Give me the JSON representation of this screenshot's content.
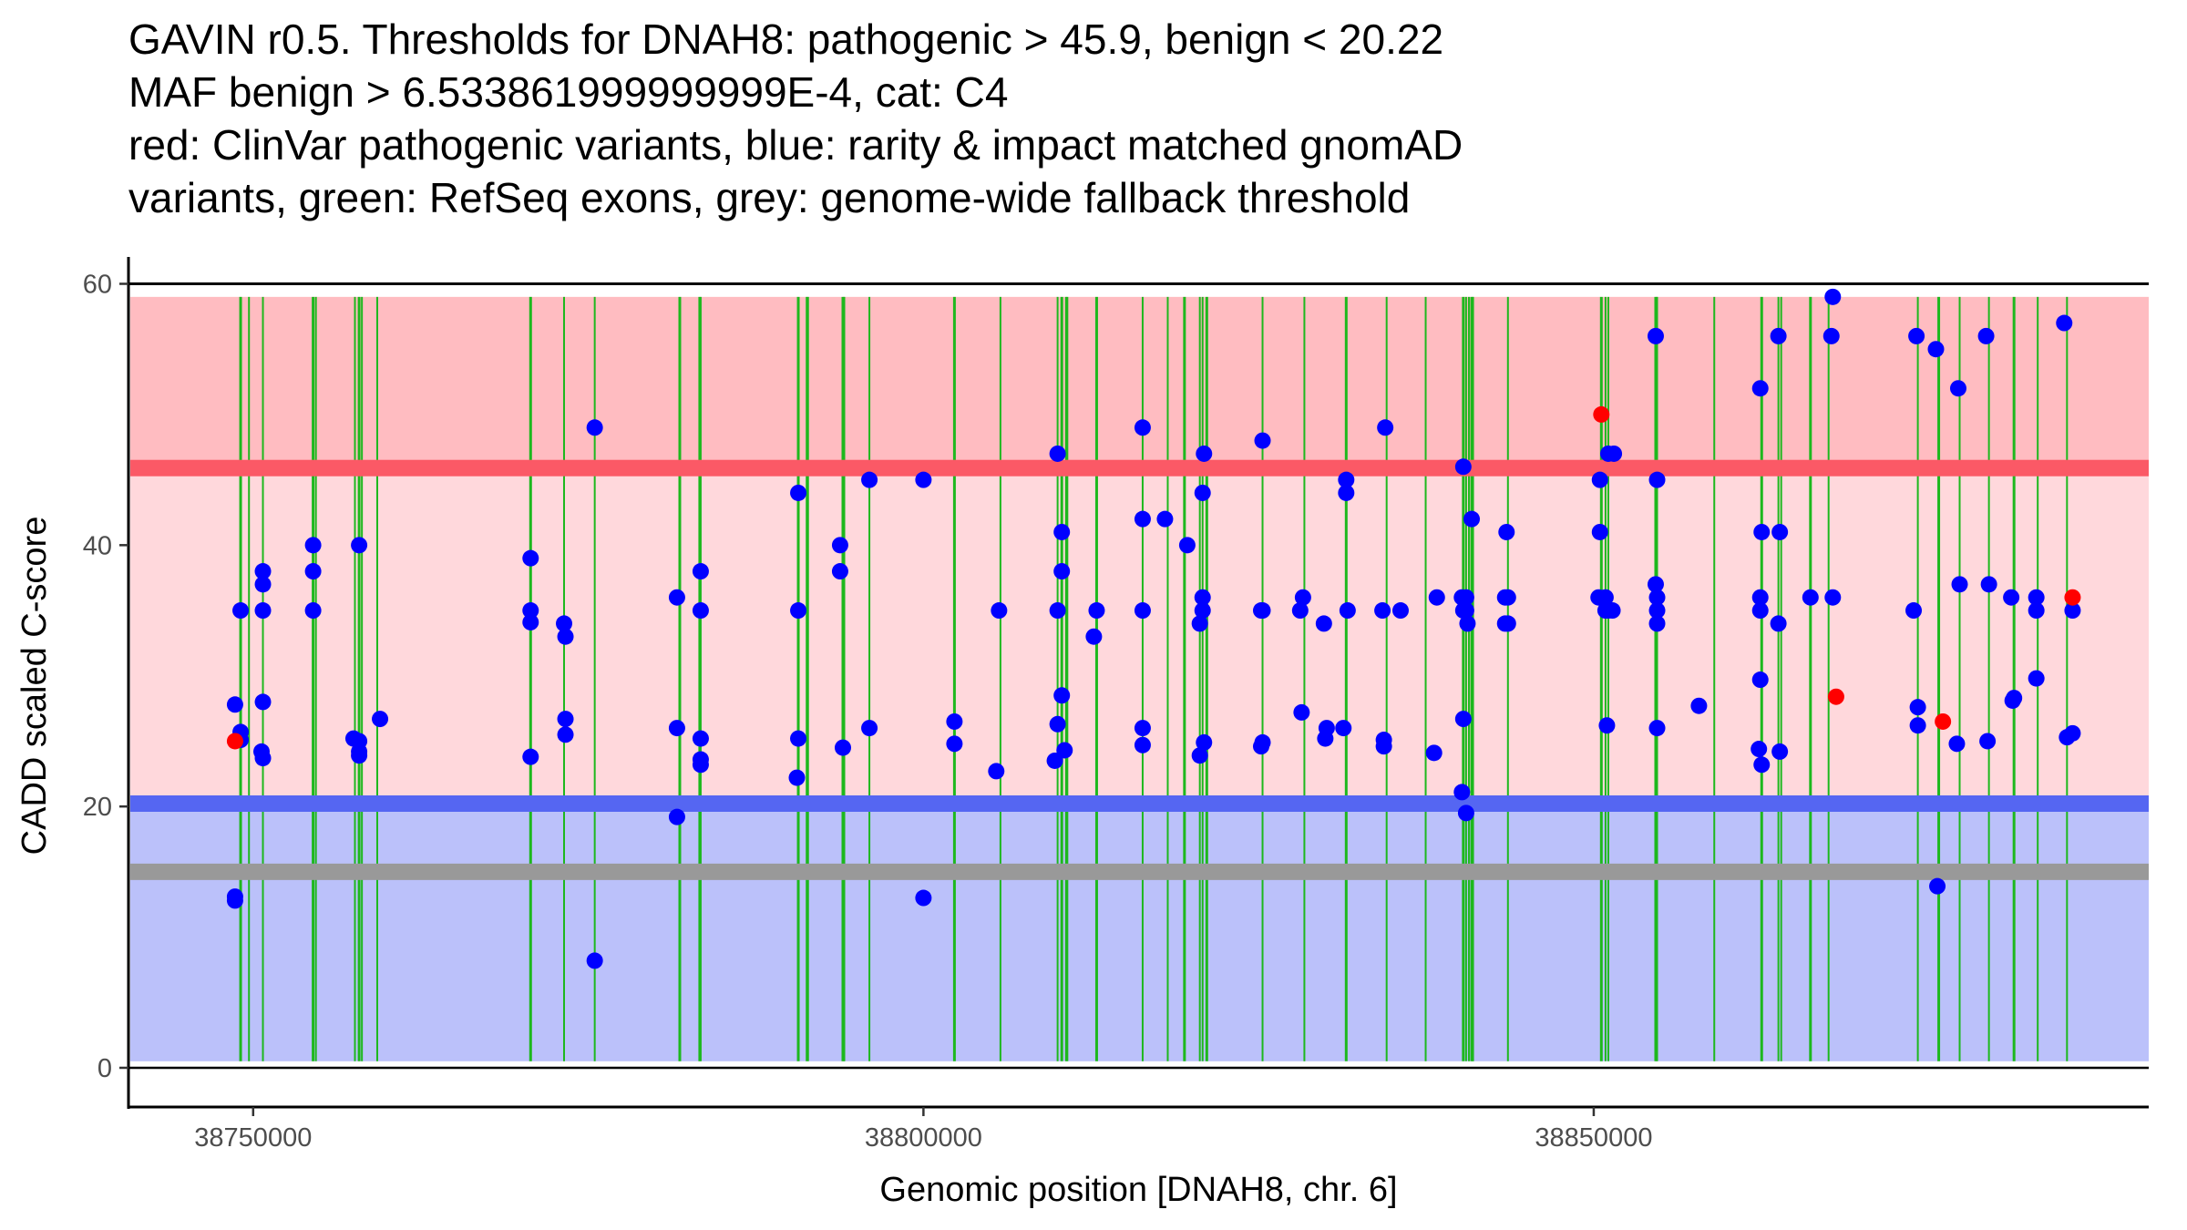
{
  "chart_data": {
    "type": "scatter",
    "title_lines": [
      "GAVIN r0.5. Thresholds for DNAH8: pathogenic > 45.9, benign < 20.22",
      "MAF benign > 6.533861999999999E-4, cat: C4",
      "red: ClinVar pathogenic variants, blue: rarity & impact matched gnomAD",
      "variants, green: RefSeq exons, grey: genome-wide fallback threshold"
    ],
    "xlabel": "Genomic position [DNAH8, chr. 6]",
    "ylabel": "CADD scaled C-score",
    "xlim": [
      38740700,
      38891400
    ],
    "ylim": [
      -3,
      61.5
    ],
    "x_ticks": [
      38750000,
      38800000,
      38850000
    ],
    "x_tick_labels": [
      "38750000",
      "38800000",
      "38850000"
    ],
    "y_ticks": [
      0,
      20,
      40,
      60
    ],
    "y_tick_labels": [
      "0",
      "20",
      "40",
      "60"
    ],
    "grid": false,
    "thresholds": {
      "pathogenic": 45.9,
      "benign": 20.22,
      "fallback": 15,
      "band_top": 59,
      "band_bottom": 0.5
    },
    "colors": {
      "pathogenic_band": "#ffbcc1",
      "middle_band": "#ffd8dc",
      "benign_band": "#bbc1fa",
      "pathogenic_line": "#fb5966",
      "benign_line": "#5566f2",
      "fallback_line": "#999999",
      "exon": "#1db81d",
      "clinvar": "#ff0000",
      "gnomad": "#0000ff"
    },
    "exons": [
      38749064,
      38749688,
      38750728,
      38754472,
      38754680,
      38757592,
      38757904,
      38758112,
      38759256,
      38770696,
      38773192,
      38775480,
      38781824,
      38783280,
      38783384,
      38790664,
      38791288,
      38791392,
      38793992,
      38794096,
      38795968,
      38802312,
      38805744,
      38810008,
      38810320,
      38810632,
      38810736,
      38812920,
      38816352,
      38818224,
      38819472,
      38820616,
      38820824,
      38821136,
      38825296,
      38828416,
      38831536,
      38834552,
      38837464,
      38840272,
      38840480,
      38840688,
      38840896,
      38841000,
      38843600,
      38850568,
      38850880,
      38851088,
      38854624,
      38854728,
      38858992,
      38862528,
      38863776,
      38863984,
      38866168,
      38867520,
      38874176,
      38875736,
      38877296,
      38879480,
      38881352,
      38883120,
      38885304
    ],
    "series": [
      {
        "name": "ClinVar pathogenic variants",
        "color": "red",
        "points": [
          [
            38748648,
            25.0
          ],
          [
            38850568,
            50.0
          ],
          [
            38868080,
            28.4
          ],
          [
            38876048,
            26.5
          ],
          [
            38885720,
            36.0
          ]
        ]
      },
      {
        "name": "rarity & impact matched gnomAD variants",
        "color": "blue",
        "points": [
          [
            38748648,
            27.8
          ],
          [
            38748648,
            13.1
          ],
          [
            38748648,
            12.8
          ],
          [
            38749064,
            35.0
          ],
          [
            38749064,
            25.7
          ],
          [
            38749064,
            25.1
          ],
          [
            38750728,
            38.0
          ],
          [
            38750728,
            37.0
          ],
          [
            38750728,
            35.0
          ],
          [
            38750728,
            28.0
          ],
          [
            38750624,
            24.2
          ],
          [
            38750728,
            23.7
          ],
          [
            38754472,
            40.0
          ],
          [
            38754472,
            38.0
          ],
          [
            38754472,
            35.0
          ],
          [
            38757488,
            25.2
          ],
          [
            38757904,
            40.0
          ],
          [
            38757904,
            25.0
          ],
          [
            38757904,
            24.2
          ],
          [
            38757904,
            23.9
          ],
          [
            38759464,
            26.7
          ],
          [
            38770696,
            39.0
          ],
          [
            38770696,
            35.0
          ],
          [
            38770696,
            34.1
          ],
          [
            38770696,
            23.8
          ],
          [
            38773192,
            34.0
          ],
          [
            38773296,
            33.0
          ],
          [
            38773296,
            26.7
          ],
          [
            38773296,
            25.5
          ],
          [
            38775480,
            49.0
          ],
          [
            38775480,
            8.2
          ],
          [
            38781616,
            36.0
          ],
          [
            38781616,
            26.0
          ],
          [
            38781616,
            19.2
          ],
          [
            38783384,
            38.0
          ],
          [
            38783384,
            35.0
          ],
          [
            38783384,
            25.2
          ],
          [
            38783384,
            23.6
          ],
          [
            38783384,
            23.2
          ],
          [
            38790664,
            44.0
          ],
          [
            38790664,
            35.0
          ],
          [
            38790664,
            25.2
          ],
          [
            38790560,
            22.2
          ],
          [
            38793784,
            40.0
          ],
          [
            38793784,
            38.0
          ],
          [
            38793992,
            24.5
          ],
          [
            38795968,
            45.0
          ],
          [
            38795968,
            26.0
          ],
          [
            38800000,
            45.0
          ],
          [
            38800000,
            13.0
          ],
          [
            38802312,
            26.5
          ],
          [
            38802312,
            24.8
          ],
          [
            38805640,
            35.0
          ],
          [
            38805432,
            22.7
          ],
          [
            38810008,
            47.0
          ],
          [
            38810008,
            35.0
          ],
          [
            38810320,
            41.0
          ],
          [
            38810320,
            38.0
          ],
          [
            38810320,
            28.5
          ],
          [
            38810008,
            26.3
          ],
          [
            38810528,
            24.3
          ],
          [
            38809800,
            23.5
          ],
          [
            38812920,
            35.0
          ],
          [
            38812712,
            33.0
          ],
          [
            38816352,
            49.0
          ],
          [
            38816352,
            42.0
          ],
          [
            38816352,
            35.0
          ],
          [
            38816352,
            26.0
          ],
          [
            38816352,
            24.7
          ],
          [
            38818016,
            42.0
          ],
          [
            38819680,
            40.0
          ],
          [
            38820928,
            47.0
          ],
          [
            38820824,
            44.0
          ],
          [
            38820824,
            36.0
          ],
          [
            38820824,
            35.0
          ],
          [
            38820616,
            34.0
          ],
          [
            38820928,
            24.9
          ],
          [
            38820616,
            23.9
          ],
          [
            38825296,
            48.0
          ],
          [
            38825192,
            35.0
          ],
          [
            38825296,
            35.0
          ],
          [
            38825296,
            24.9
          ],
          [
            38825192,
            24.6
          ],
          [
            38828312,
            36.0
          ],
          [
            38828104,
            35.0
          ],
          [
            38828208,
            27.2
          ],
          [
            38829872,
            34.0
          ],
          [
            38830080,
            26.0
          ],
          [
            38829976,
            25.2
          ],
          [
            38831536,
            45.0
          ],
          [
            38831536,
            44.0
          ],
          [
            38831640,
            35.0
          ],
          [
            38831328,
            26.0
          ],
          [
            38834448,
            49.0
          ],
          [
            38834240,
            35.0
          ],
          [
            38834344,
            25.1
          ],
          [
            38834344,
            24.6
          ],
          [
            38835592,
            35.0
          ],
          [
            38838296,
            36.0
          ],
          [
            38838088,
            24.1
          ],
          [
            38840272,
            46.0
          ],
          [
            38840168,
            36.0
          ],
          [
            38840480,
            36.0
          ],
          [
            38840272,
            35.0
          ],
          [
            38840584,
            34.0
          ],
          [
            38840480,
            35.0
          ],
          [
            38840272,
            26.7
          ],
          [
            38840168,
            21.1
          ],
          [
            38840480,
            19.5
          ],
          [
            38840896,
            42.0
          ],
          [
            38843496,
            41.0
          ],
          [
            38843392,
            36.0
          ],
          [
            38843600,
            36.0
          ],
          [
            38843392,
            34.0
          ],
          [
            38843600,
            34.0
          ],
          [
            38850464,
            45.0
          ],
          [
            38850464,
            41.0
          ],
          [
            38850360,
            36.0
          ],
          [
            38850880,
            36.0
          ],
          [
            38850880,
            35.0
          ],
          [
            38851088,
            35.0
          ],
          [
            38850984,
            26.2
          ],
          [
            38851088,
            47.0
          ],
          [
            38851504,
            47.0
          ],
          [
            38851400,
            35.0
          ],
          [
            38854624,
            56.0
          ],
          [
            38854728,
            45.0
          ],
          [
            38854624,
            37.0
          ],
          [
            38854728,
            36.0
          ],
          [
            38854728,
            35.0
          ],
          [
            38854728,
            34.0
          ],
          [
            38854728,
            26.0
          ],
          [
            38857848,
            27.7
          ],
          [
            38862424,
            52.0
          ],
          [
            38862528,
            41.0
          ],
          [
            38862424,
            36.0
          ],
          [
            38862424,
            35.0
          ],
          [
            38862424,
            29.7
          ],
          [
            38862320,
            24.4
          ],
          [
            38862528,
            23.2
          ],
          [
            38863776,
            56.0
          ],
          [
            38863880,
            41.0
          ],
          [
            38863776,
            34.0
          ],
          [
            38863880,
            24.2
          ],
          [
            38866168,
            36.0
          ],
          [
            38867832,
            59.0
          ],
          [
            38867728,
            56.0
          ],
          [
            38867832,
            36.0
          ],
          [
            38874072,
            56.0
          ],
          [
            38873864,
            35.0
          ],
          [
            38874176,
            27.6
          ],
          [
            38874176,
            26.2
          ],
          [
            38875528,
            55.0
          ],
          [
            38875632,
            13.9
          ],
          [
            38877192,
            52.0
          ],
          [
            38877296,
            37.0
          ],
          [
            38877088,
            24.8
          ],
          [
            38879272,
            56.0
          ],
          [
            38879480,
            37.0
          ],
          [
            38879376,
            25.0
          ],
          [
            38881144,
            36.0
          ],
          [
            38881248,
            28.1
          ],
          [
            38881352,
            28.3
          ],
          [
            38883016,
            36.0
          ],
          [
            38883016,
            35.0
          ],
          [
            38883016,
            29.8
          ],
          [
            38885096,
            57.0
          ],
          [
            38885304,
            25.3
          ],
          [
            38885720,
            35.0
          ],
          [
            38885720,
            25.6
          ]
        ]
      }
    ]
  }
}
